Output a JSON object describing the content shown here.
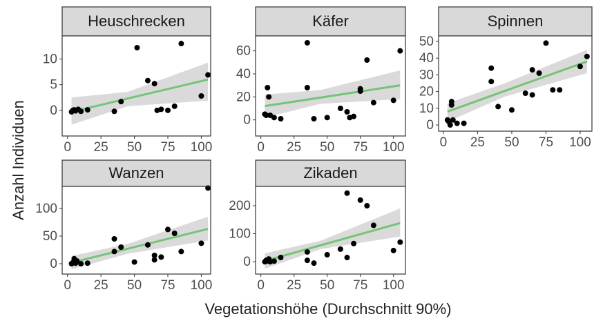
{
  "ylabel": "Anzahl Individuen",
  "xlabel": "Vegetationshöhe (Durchschnitt 90%)",
  "chart_data": [
    {
      "type": "scatter",
      "title": "Heuschrecken",
      "color": "#000000",
      "line_color": "#74c476",
      "band_color": "#d3d3d3",
      "x": [
        3,
        4,
        5,
        6,
        8,
        10,
        15,
        35,
        40,
        52,
        60,
        65,
        67,
        70,
        75,
        80,
        85,
        100,
        105
      ],
      "y": [
        -0.3,
        0,
        0.1,
        -0.1,
        0.2,
        -0.2,
        0.1,
        -0.2,
        1.7,
        12.2,
        5.8,
        5.2,
        0,
        0.2,
        0,
        0.8,
        13,
        2.8,
        6.9
      ],
      "fit": {
        "x": [
          3,
          45,
          105
        ],
        "y": [
          -0.3,
          2.3,
          6
        ],
        "lower": [
          -2.8,
          0.8,
          1.9
        ],
        "upper": [
          2.5,
          3.6,
          9.3
        ]
      },
      "xlim": [
        -4,
        107
      ],
      "ylim": [
        -5,
        14.5
      ],
      "xticks": [
        0,
        25,
        50,
        75,
        100
      ],
      "yticks": [
        0,
        5,
        10
      ]
    },
    {
      "type": "scatter",
      "title": "Käfer",
      "color": "#000000",
      "line_color": "#74c476",
      "band_color": "#d3d3d3",
      "x": [
        3,
        4,
        5,
        6,
        7,
        10,
        15,
        35,
        35,
        40,
        50,
        60,
        65,
        67,
        70,
        75,
        75,
        80,
        85,
        100,
        105
      ],
      "y": [
        5,
        4,
        28,
        20,
        4,
        2,
        1,
        67,
        28,
        1,
        2,
        10,
        7,
        2,
        3,
        25,
        27,
        52,
        15,
        17,
        60
      ],
      "fit": {
        "x": [
          3,
          45,
          105
        ],
        "y": [
          12,
          19.4,
          30
        ],
        "lower": [
          2,
          14,
          18
        ],
        "upper": [
          22,
          26,
          43
        ]
      },
      "xlim": [
        -4,
        109
      ],
      "ylim": [
        -14,
        73
      ],
      "xticks": [
        0,
        25,
        50,
        75,
        100
      ],
      "yticks": [
        0,
        20,
        40,
        60
      ]
    },
    {
      "type": "scatter",
      "title": "Spinnen",
      "color": "#000000",
      "line_color": "#74c476",
      "band_color": "#d3d3d3",
      "x": [
        3,
        4,
        5,
        6,
        6,
        7,
        10,
        15,
        35,
        35,
        40,
        50,
        60,
        65,
        65,
        70,
        75,
        80,
        85,
        100,
        105
      ],
      "y": [
        3,
        2,
        0,
        14,
        12,
        3,
        1,
        1,
        34,
        26,
        11,
        9,
        19,
        18,
        33,
        31,
        49,
        21,
        21,
        35,
        41
      ],
      "fit": {
        "x": [
          3,
          45,
          105
        ],
        "y": [
          8,
          20.4,
          38
        ],
        "lower": [
          2,
          17,
          31
        ],
        "upper": [
          13,
          25,
          45
        ]
      },
      "xlim": [
        -3.5,
        108.6
      ],
      "ylim": [
        -3.7,
        53.3
      ],
      "xticks": [
        0,
        25,
        50,
        75,
        100
      ],
      "yticks": [
        0,
        10,
        20,
        30,
        40,
        50
      ]
    },
    {
      "type": "scatter",
      "title": "Wanzen",
      "color": "#000000",
      "line_color": "#74c476",
      "band_color": "#d3d3d3",
      "x": [
        3,
        4,
        5,
        6,
        7,
        10,
        15,
        35,
        35,
        40,
        50,
        60,
        65,
        65,
        70,
        75,
        80,
        85,
        100,
        105
      ],
      "y": [
        0,
        2,
        9,
        1,
        5,
        0,
        1,
        22,
        45,
        30,
        3,
        34,
        15,
        7,
        12,
        62,
        55,
        22,
        37,
        137
      ],
      "fit": {
        "x": [
          3,
          45,
          105
        ],
        "y": [
          2,
          27.1,
          63
        ],
        "lower": [
          -10,
          18,
          42
        ],
        "upper": [
          14,
          36,
          85
        ]
      },
      "xlim": [
        -4,
        107
      ],
      "ylim": [
        -18.75,
        140
      ],
      "xticks": [
        0,
        25,
        50,
        75,
        100
      ],
      "yticks": [
        0,
        50,
        100
      ]
    },
    {
      "type": "scatter",
      "title": "Zikaden",
      "color": "#000000",
      "line_color": "#74c476",
      "band_color": "#d3d3d3",
      "x": [
        3,
        4,
        5,
        6,
        7,
        10,
        15,
        35,
        35,
        40,
        50,
        60,
        65,
        65,
        70,
        75,
        80,
        85,
        100,
        105
      ],
      "y": [
        0,
        5,
        3,
        10,
        0,
        2,
        15,
        35,
        5,
        -5,
        25,
        45,
        15,
        245,
        65,
        220,
        200,
        130,
        40,
        70
      ],
      "fit": {
        "x": [
          3,
          45,
          105
        ],
        "y": [
          3,
          58.6,
          138
        ],
        "lower": [
          -25,
          45,
          90
        ],
        "upper": [
          30,
          75,
          190
        ]
      },
      "xlim": [
        -4,
        109
      ],
      "ylim": [
        -44,
        269
      ],
      "xticks": [
        0,
        25,
        50,
        75,
        100
      ],
      "yticks": [
        0,
        100,
        200
      ]
    }
  ]
}
